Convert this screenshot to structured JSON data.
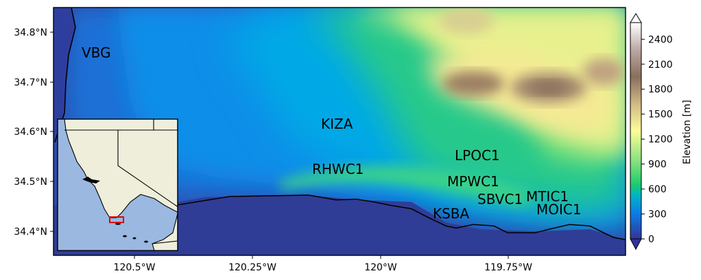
{
  "map": {
    "lat_labels": [
      "34.8°N",
      "34.7°N",
      "34.6°N",
      "34.5°N",
      "34.4°N"
    ],
    "lon_labels": [
      "120.5°W",
      "120.25°W",
      "120°W",
      "119.75°W"
    ]
  },
  "stations": [
    {
      "id": "VBG"
    },
    {
      "id": "KIZA"
    },
    {
      "id": "LPOC1"
    },
    {
      "id": "RHWC1"
    },
    {
      "id": "MPWC1"
    },
    {
      "id": "SBVC1"
    },
    {
      "id": "MTIC1"
    },
    {
      "id": "MOIC1"
    },
    {
      "id": "KSBA"
    }
  ],
  "colorbar": {
    "label": "Elevation [m]",
    "ticks": [
      "0",
      "300",
      "600",
      "900",
      "1200",
      "1500",
      "1800",
      "2100",
      "2400"
    ],
    "colormap": "terrain",
    "range": [
      0,
      2600
    ]
  },
  "inset": {
    "region": "California",
    "highlight_color": "#e00000",
    "ocean_color": "#9ab8e0",
    "land_color": "#efeedb"
  }
}
